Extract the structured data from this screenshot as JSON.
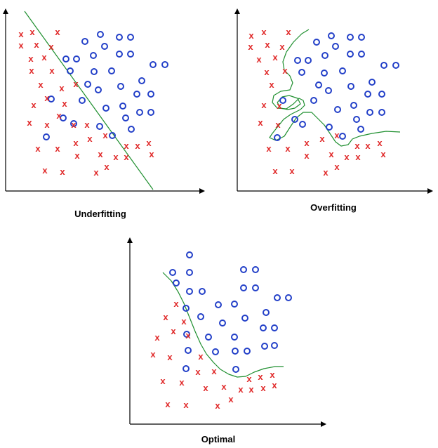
{
  "colors": {
    "class_x": "#e02a2a",
    "class_o": "#2340c8",
    "boundary": "#1f8f2f",
    "axis": "#000000"
  },
  "x_symbol": "x",
  "panels": [
    {
      "label": "Underfitting",
      "x_marks": [
        [
          30,
          49
        ],
        [
          46,
          46
        ],
        [
          82,
          46
        ],
        [
          30,
          65
        ],
        [
          52,
          64
        ],
        [
          73,
          67
        ],
        [
          44,
          84
        ],
        [
          63,
          82
        ],
        [
          45,
          101
        ],
        [
          74,
          101
        ],
        [
          58,
          121
        ],
        [
          88,
          126
        ],
        [
          108,
          120
        ],
        [
          67,
          140
        ],
        [
          48,
          150
        ],
        [
          92,
          148
        ],
        [
          84,
          165
        ],
        [
          42,
          175
        ],
        [
          67,
          178
        ],
        [
          105,
          178
        ],
        [
          124,
          178
        ],
        [
          54,
          212
        ],
        [
          82,
          212
        ],
        [
          108,
          204
        ],
        [
          128,
          198
        ],
        [
          150,
          193
        ],
        [
          180,
          208
        ],
        [
          196,
          208
        ],
        [
          212,
          204
        ],
        [
          110,
          222
        ],
        [
          143,
          220
        ],
        [
          165,
          224
        ],
        [
          180,
          224
        ],
        [
          216,
          220
        ],
        [
          64,
          243
        ],
        [
          89,
          245
        ],
        [
          137,
          246
        ],
        [
          152,
          238
        ]
      ],
      "o_marks": [
        [
          143,
          49
        ],
        [
          170,
          53
        ],
        [
          186,
          53
        ],
        [
          121,
          59
        ],
        [
          149,
          66
        ],
        [
          133,
          79
        ],
        [
          170,
          77
        ],
        [
          186,
          77
        ],
        [
          94,
          84
        ],
        [
          109,
          84
        ],
        [
          100,
          101
        ],
        [
          134,
          102
        ],
        [
          159,
          101
        ],
        [
          218,
          92
        ],
        [
          235,
          92
        ],
        [
          125,
          120
        ],
        [
          202,
          115
        ],
        [
          172,
          123
        ],
        [
          73,
          141
        ],
        [
          140,
          128
        ],
        [
          195,
          134
        ],
        [
          215,
          134
        ],
        [
          117,
          143
        ],
        [
          151,
          154
        ],
        [
          175,
          151
        ],
        [
          199,
          160
        ],
        [
          215,
          160
        ],
        [
          90,
          168
        ],
        [
          105,
          176
        ],
        [
          179,
          168
        ],
        [
          142,
          180
        ],
        [
          187,
          184
        ],
        [
          66,
          195
        ],
        [
          160,
          193
        ]
      ],
      "boundary": [
        [
          35,
          16
        ],
        [
          218,
          270
        ]
      ]
    },
    {
      "label": "Overfitting",
      "x_marks": [
        [
          358,
          51
        ],
        [
          376,
          46
        ],
        [
          411,
          46
        ],
        [
          357,
          67
        ],
        [
          381,
          64
        ],
        [
          402,
          67
        ],
        [
          369,
          85
        ],
        [
          392,
          82
        ],
        [
          380,
          103
        ],
        [
          406,
          101
        ],
        [
          387,
          121
        ],
        [
          376,
          150
        ],
        [
          398,
          151
        ],
        [
          371,
          175
        ],
        [
          396,
          178
        ],
        [
          383,
          212
        ],
        [
          410,
          212
        ],
        [
          437,
          204
        ],
        [
          459,
          198
        ],
        [
          480,
          193
        ],
        [
          509,
          208
        ],
        [
          524,
          208
        ],
        [
          541,
          204
        ],
        [
          437,
          222
        ],
        [
          472,
          220
        ],
        [
          494,
          224
        ],
        [
          510,
          224
        ],
        [
          546,
          220
        ],
        [
          392,
          244
        ],
        [
          416,
          244
        ],
        [
          464,
          246
        ],
        [
          480,
          238
        ]
      ],
      "o_marks": [
        [
          472,
          51
        ],
        [
          499,
          53
        ],
        [
          515,
          53
        ],
        [
          451,
          60
        ],
        [
          478,
          66
        ],
        [
          463,
          79
        ],
        [
          499,
          77
        ],
        [
          515,
          77
        ],
        [
          424,
          86
        ],
        [
          439,
          86
        ],
        [
          430,
          103
        ],
        [
          462,
          104
        ],
        [
          488,
          101
        ],
        [
          547,
          93
        ],
        [
          564,
          93
        ],
        [
          454,
          121
        ],
        [
          530,
          117
        ],
        [
          500,
          123
        ],
        [
          403,
          143
        ],
        [
          468,
          129
        ],
        [
          524,
          134
        ],
        [
          544,
          134
        ],
        [
          447,
          143
        ],
        [
          481,
          156
        ],
        [
          504,
          150
        ],
        [
          527,
          160
        ],
        [
          544,
          160
        ],
        [
          420,
          170
        ],
        [
          431,
          177
        ],
        [
          508,
          170
        ],
        [
          469,
          181
        ],
        [
          514,
          184
        ],
        [
          395,
          196
        ],
        [
          488,
          194
        ]
      ],
      "boundary": [
        [
          440,
          42
        ],
        [
          430,
          48
        ],
        [
          418,
          60
        ],
        [
          408,
          74
        ],
        [
          403,
          88
        ],
        [
          405,
          100
        ],
        [
          413,
          108
        ],
        [
          417,
          118
        ],
        [
          413,
          128
        ],
        [
          400,
          130
        ],
        [
          390,
          136
        ],
        [
          388,
          146
        ],
        [
          395,
          154
        ],
        [
          408,
          155
        ],
        [
          418,
          148
        ],
        [
          426,
          140
        ],
        [
          432,
          143
        ],
        [
          434,
          150
        ],
        [
          428,
          156
        ],
        [
          414,
          163
        ],
        [
          404,
          170
        ],
        [
          396,
          180
        ],
        [
          388,
          190
        ],
        [
          384,
          196
        ],
        [
          393,
          200
        ],
        [
          405,
          194
        ],
        [
          414,
          180
        ],
        [
          422,
          168
        ],
        [
          432,
          160
        ],
        [
          444,
          160
        ],
        [
          452,
          168
        ],
        [
          462,
          178
        ],
        [
          470,
          190
        ],
        [
          478,
          202
        ],
        [
          486,
          208
        ],
        [
          496,
          206
        ],
        [
          502,
          198
        ],
        [
          512,
          194
        ],
        [
          530,
          190
        ],
        [
          550,
          187
        ],
        [
          570,
          188
        ]
      ],
      "boundary_loop": [
        [
          395,
          146
        ],
        [
          402,
          138
        ],
        [
          412,
          136
        ],
        [
          424,
          140
        ],
        [
          428,
          148
        ],
        [
          420,
          154
        ],
        [
          410,
          156
        ],
        [
          400,
          154
        ],
        [
          395,
          146
        ]
      ]
    },
    {
      "label": "Optimal",
      "x_marks": [
        [
          251,
          433
        ],
        [
          236,
          452
        ],
        [
          262,
          458
        ],
        [
          247,
          472
        ],
        [
          268,
          478
        ],
        [
          224,
          481
        ],
        [
          242,
          509
        ],
        [
          218,
          505
        ],
        [
          286,
          508
        ],
        [
          232,
          543
        ],
        [
          259,
          545
        ],
        [
          305,
          529
        ],
        [
          282,
          530
        ],
        [
          293,
          553
        ],
        [
          319,
          551
        ],
        [
          343,
          555
        ],
        [
          355,
          540
        ],
        [
          371,
          537
        ],
        [
          388,
          534
        ],
        [
          358,
          555
        ],
        [
          375,
          553
        ],
        [
          391,
          549
        ],
        [
          239,
          576
        ],
        [
          265,
          577
        ],
        [
          310,
          578
        ],
        [
          329,
          569
        ]
      ],
      "o_marks": [
        [
          270,
          363
        ],
        [
          246,
          388
        ],
        [
          270,
          388
        ],
        [
          347,
          384
        ],
        [
          364,
          384
        ],
        [
          251,
          403
        ],
        [
          347,
          410
        ],
        [
          364,
          410
        ],
        [
          270,
          415
        ],
        [
          288,
          415
        ],
        [
          395,
          424
        ],
        [
          411,
          424
        ],
        [
          311,
          434
        ],
        [
          334,
          433
        ],
        [
          265,
          439
        ],
        [
          379,
          445
        ],
        [
          286,
          451
        ],
        [
          317,
          460
        ],
        [
          349,
          453
        ],
        [
          375,
          467
        ],
        [
          391,
          467
        ],
        [
          266,
          476
        ],
        [
          297,
          480
        ],
        [
          334,
          480
        ],
        [
          307,
          501
        ],
        [
          335,
          500
        ],
        [
          352,
          500
        ],
        [
          268,
          499
        ],
        [
          265,
          525
        ],
        [
          377,
          493
        ],
        [
          391,
          492
        ],
        [
          336,
          526
        ]
      ],
      "boundary": [
        [
          232,
          388
        ],
        [
          244,
          400
        ],
        [
          254,
          416
        ],
        [
          262,
          432
        ],
        [
          270,
          452
        ],
        [
          278,
          472
        ],
        [
          286,
          490
        ],
        [
          294,
          504
        ],
        [
          304,
          516
        ],
        [
          314,
          526
        ],
        [
          326,
          533
        ],
        [
          338,
          537
        ],
        [
          350,
          536
        ],
        [
          362,
          530
        ],
        [
          376,
          525
        ],
        [
          392,
          522
        ],
        [
          404,
          522
        ]
      ]
    }
  ]
}
